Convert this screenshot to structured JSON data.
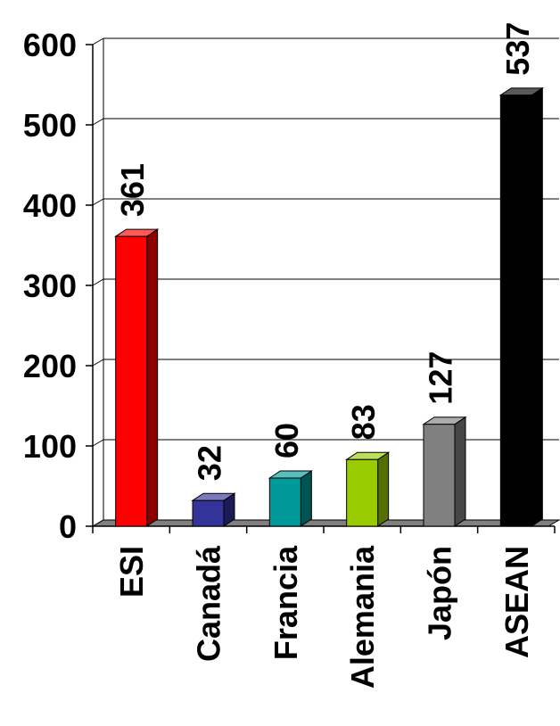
{
  "chart_data": {
    "type": "bar",
    "categories": [
      "ESI",
      "Canadá",
      "Francia",
      "Alemania",
      "Japón",
      "ASEAN"
    ],
    "values": [
      361,
      32,
      60,
      83,
      127,
      537
    ],
    "ylim": [
      0,
      600
    ],
    "yticks": [
      0,
      100,
      200,
      300,
      400,
      500,
      600
    ],
    "grid": true,
    "legend": "none",
    "colors": [
      "#ff0000",
      "#333399",
      "#009999",
      "#99cc00",
      "#808080",
      "#000000"
    ]
  }
}
